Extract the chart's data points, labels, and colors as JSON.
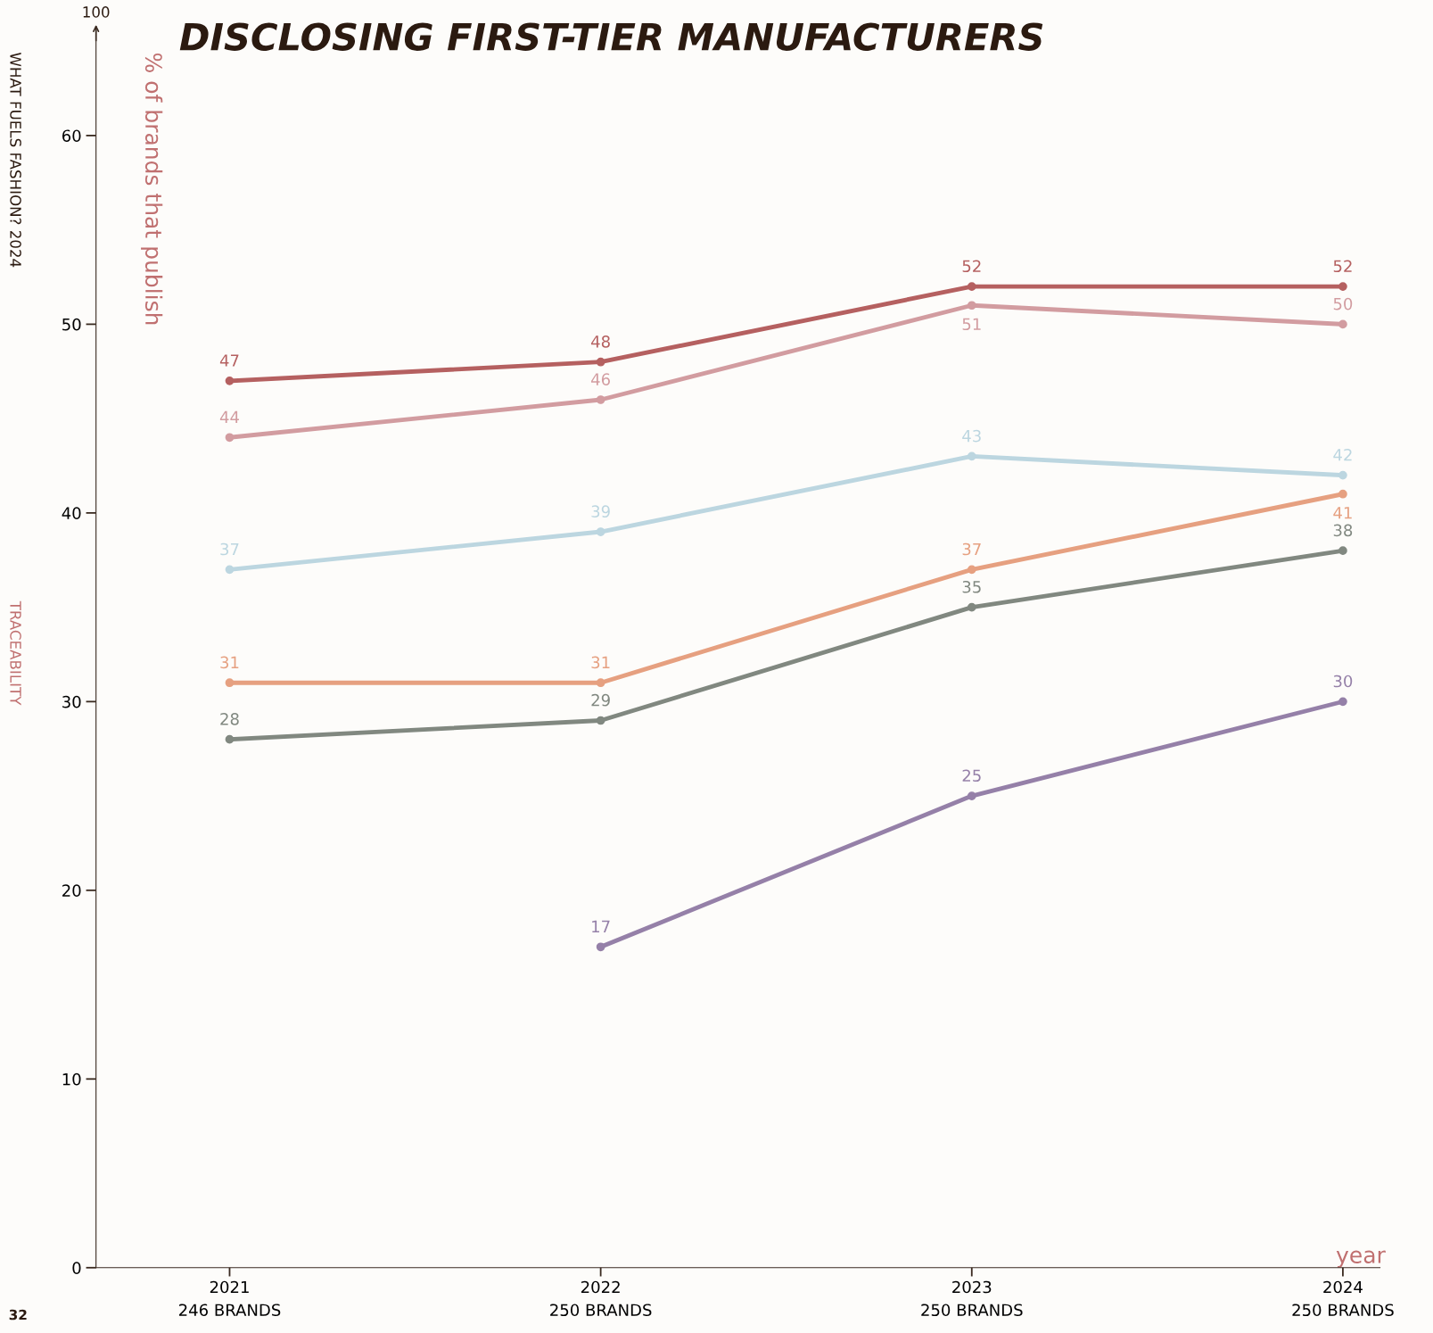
{
  "chart_data": {
    "type": "line",
    "title": "DISCLOSING FIRST-TIER MANUFACTURERS",
    "ylabel": "% of brands that publish",
    "xlabel": "year",
    "categories": [
      "2021\n246 BRANDS",
      "2022\n250 BRANDS",
      "2023\n250 BRANDS",
      "2024\n250 BRANDS"
    ],
    "series": [
      {
        "color": "#b56060",
        "values": [
          47,
          48,
          52,
          52
        ]
      },
      {
        "color": "#d29ca0",
        "values": [
          44,
          46,
          51,
          50
        ]
      },
      {
        "color": "#bcd6e0",
        "values": [
          37,
          39,
          43,
          42
        ]
      },
      {
        "color": "#e6a080",
        "values": [
          31,
          31,
          37,
          41
        ]
      },
      {
        "color": "#818880",
        "values": [
          28,
          29,
          35,
          38
        ]
      },
      {
        "color": "#9580a8",
        "values": [
          null,
          17,
          25,
          30
        ]
      }
    ],
    "ylim": [
      0,
      65.7
    ],
    "yticks": [
      0,
      10,
      20,
      30,
      40,
      50,
      60
    ],
    "marker": "circle",
    "data_labels": true,
    "grid": false,
    "annotations": [
      "100",
      "TRACEABILITY",
      "WHAT FUELS FASHION? 2024",
      "32"
    ]
  }
}
